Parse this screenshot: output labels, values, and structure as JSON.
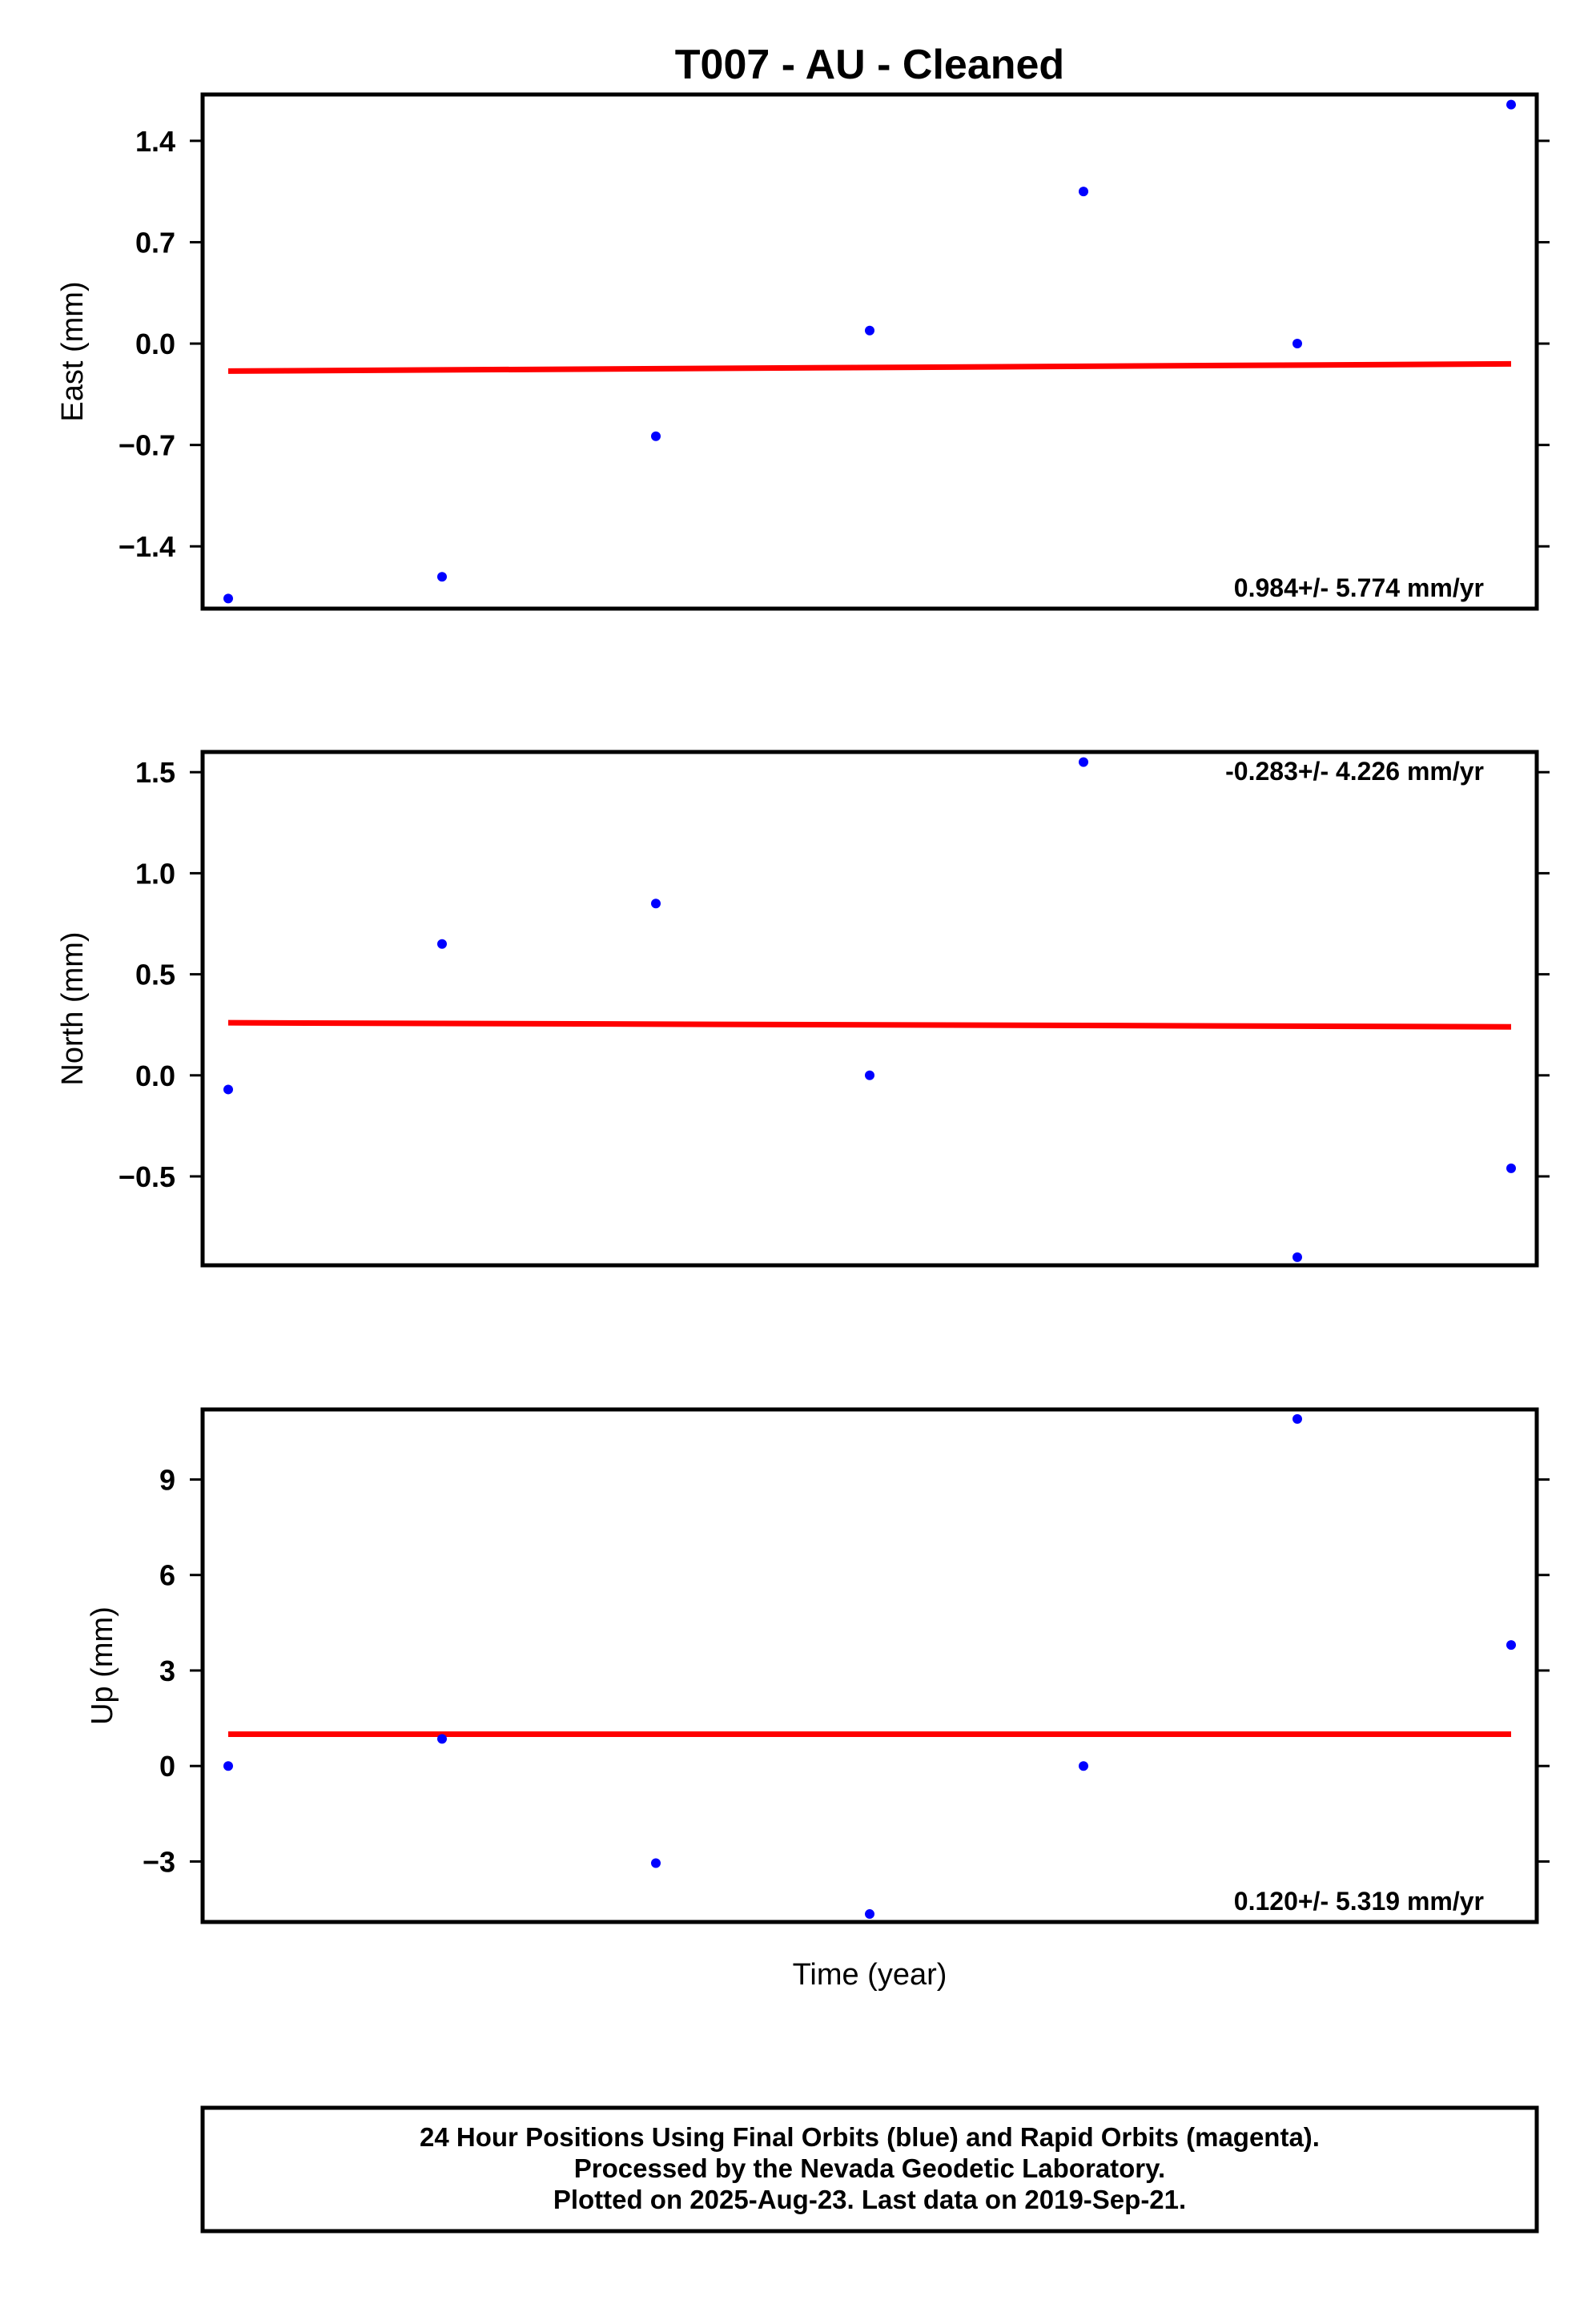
{
  "title": "T007  - AU - Cleaned",
  "xlabel": "Time (year)",
  "colors": {
    "points": "#0000ff",
    "trend": "#ff0000",
    "frame": "#000000"
  },
  "footer": {
    "line1": "24 Hour Positions Using Final Orbits (blue) and Rapid Orbits (magenta).",
    "line2": "Processed by the Nevada Geodetic Laboratory.",
    "line3": "Plotted on 2025-Aug-23. Last data on 2019-Sep-21."
  },
  "chart_data": [
    {
      "type": "scatter",
      "ylabel": "East (mm)",
      "rate_label": "0.984+/- 5.774 mm/yr",
      "ylim": [
        -1.83,
        1.72
      ],
      "yticks": [
        1.4,
        0.7,
        0.0,
        -0.7,
        -1.4
      ],
      "ytick_labels": [
        "1.4",
        "0.7",
        "0.0",
        "−0.7",
        "−1.4"
      ],
      "points": [
        {
          "x": 0,
          "y": -1.76
        },
        {
          "x": 1,
          "y": -1.61
        },
        {
          "x": 2,
          "y": -0.64
        },
        {
          "x": 3,
          "y": 0.09
        },
        {
          "x": 4,
          "y": 1.05
        },
        {
          "x": 5,
          "y": 0.0
        },
        {
          "x": 6,
          "y": 1.65
        }
      ],
      "trend": {
        "y_start": -0.19,
        "y_end": -0.14
      }
    },
    {
      "type": "scatter",
      "ylabel": "North (mm)",
      "rate_label": "-0.283+/- 4.226 mm/yr",
      "ylim": [
        -0.94,
        1.6
      ],
      "yticks": [
        1.5,
        1.0,
        0.5,
        0.0,
        -0.5
      ],
      "ytick_labels": [
        "1.5",
        "1.0",
        "0.5",
        "0.0",
        "−0.5"
      ],
      "points": [
        {
          "x": 0,
          "y": -0.07
        },
        {
          "x": 1,
          "y": 0.65
        },
        {
          "x": 2,
          "y": 0.85
        },
        {
          "x": 3,
          "y": 0.0
        },
        {
          "x": 4,
          "y": 1.55
        },
        {
          "x": 5,
          "y": -0.9
        },
        {
          "x": 6,
          "y": -0.46
        }
      ],
      "trend": {
        "y_start": 0.26,
        "y_end": 0.24
      }
    },
    {
      "type": "scatter",
      "ylabel": "Up (mm)",
      "rate_label": "0.120+/- 5.319 mm/yr",
      "ylim": [
        -4.9,
        11.2
      ],
      "yticks": [
        9,
        6,
        3,
        0,
        -3
      ],
      "ytick_labels": [
        "9",
        "6",
        "3",
        "0",
        "−3"
      ],
      "points": [
        {
          "x": 0,
          "y": 0.0
        },
        {
          "x": 1,
          "y": 0.85
        },
        {
          "x": 2,
          "y": -3.05
        },
        {
          "x": 3,
          "y": -4.65
        },
        {
          "x": 4,
          "y": 0.0
        },
        {
          "x": 5,
          "y": 10.9
        },
        {
          "x": 6,
          "y": 3.8
        }
      ],
      "trend": {
        "y_start": 1.0,
        "y_end": 1.0
      }
    }
  ]
}
